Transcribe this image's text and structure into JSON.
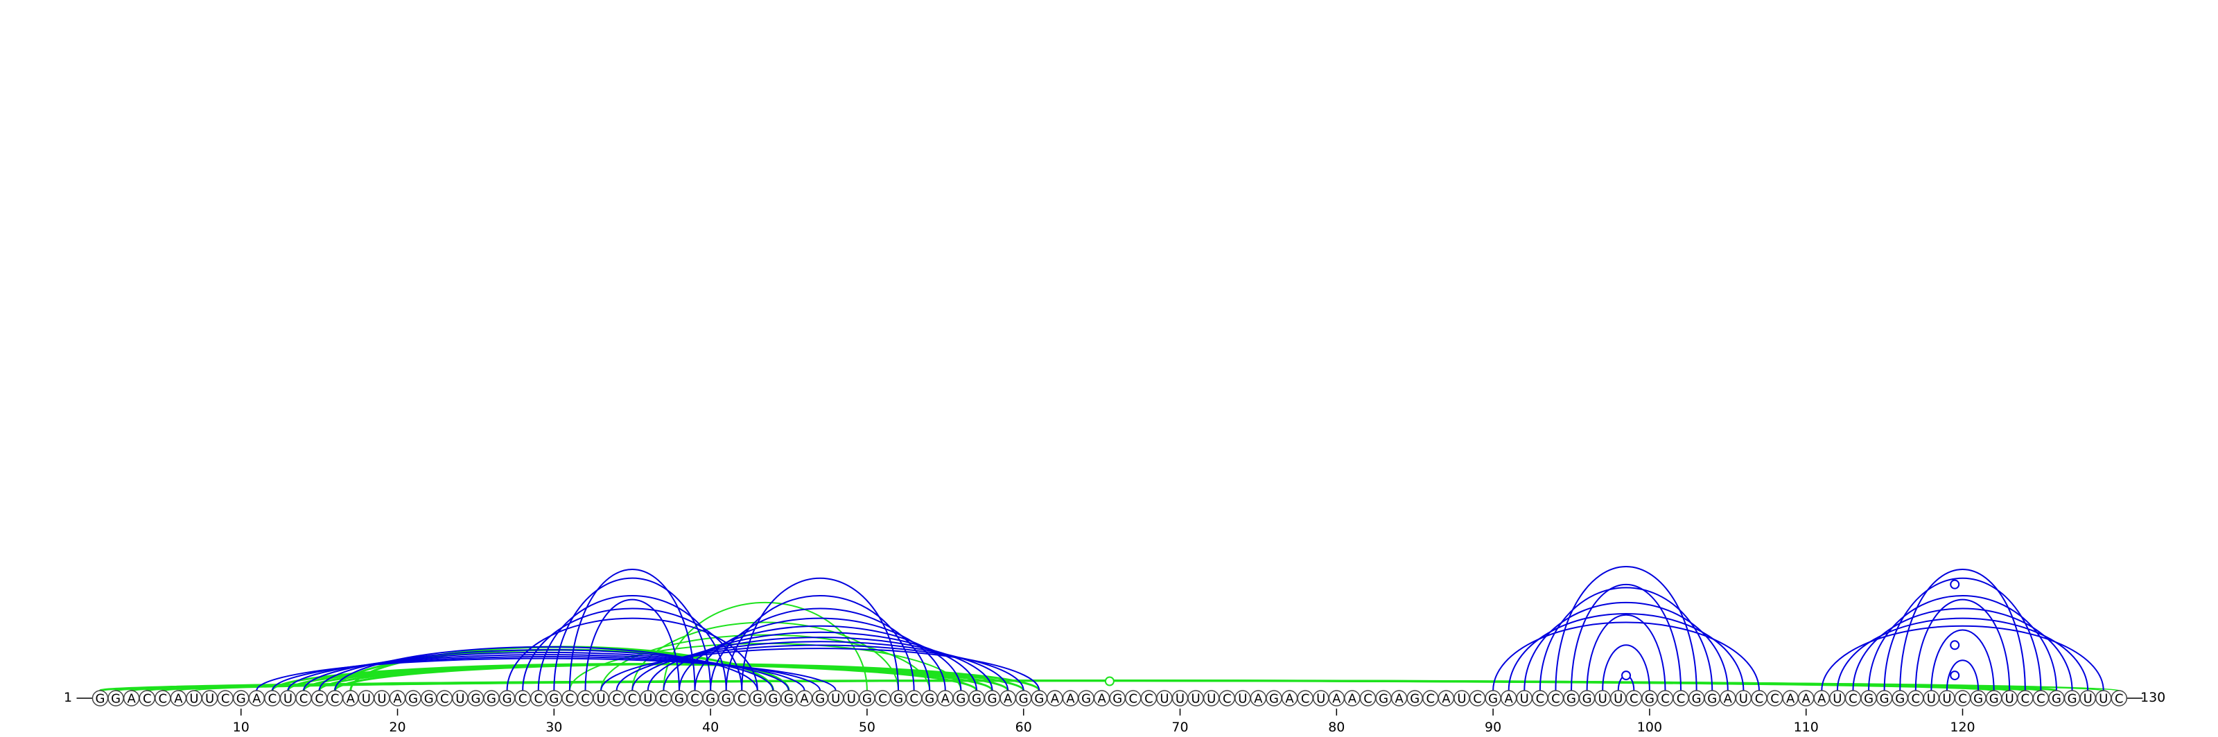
{
  "sequence": "GGACCAUUCGACUCCCAUUAGGCUGGGCCGCCUCCUCGCGGCGGGAGUUGCGCGAGGGAGGAAGAGCCUUUUCUAGACUAACGAGCAUCGAUCCGGUUCGCCGGAUCCAAAUCGGGCUUCGGUCCGGUUC",
  "start_label": "1",
  "end_label": "130",
  "axis_ticks": [
    10,
    20,
    30,
    40,
    50,
    60,
    70,
    80,
    90,
    100,
    110,
    120
  ],
  "colors": {
    "blue": "#0000dd",
    "green": "#1de21d"
  },
  "arc_groups": [
    {
      "color": "green",
      "stroke": 3,
      "pairs": [
        [
          1,
          122
        ],
        [
          2,
          123
        ],
        [
          3,
          124
        ],
        [
          4,
          125
        ],
        [
          5,
          126
        ]
      ]
    },
    {
      "color": "green",
      "stroke": 2,
      "pairs": [
        [
          6,
          129
        ],
        [
          7,
          130
        ]
      ]
    },
    {
      "color": "green",
      "stroke": 3,
      "pairs": [
        [
          12,
          57
        ],
        [
          13,
          58
        ],
        [
          14,
          59
        ],
        [
          15,
          60
        ],
        [
          16,
          61
        ]
      ]
    },
    {
      "color": "green",
      "stroke": 3,
      "pairs": [
        [
          16,
          45
        ],
        [
          17,
          44
        ]
      ]
    },
    {
      "color": "green",
      "stroke": 2,
      "pairs": [
        [
          31,
          56
        ],
        [
          33,
          54
        ],
        [
          35,
          52
        ],
        [
          37,
          50
        ]
      ]
    },
    {
      "color": "blue",
      "stroke": 2,
      "pairs": [
        [
          11,
          48
        ],
        [
          12,
          47
        ],
        [
          13,
          46
        ],
        [
          14,
          45
        ],
        [
          15,
          44
        ],
        [
          16,
          43
        ]
      ]
    },
    {
      "color": "blue",
      "stroke": 2,
      "pairs": [
        [
          27,
          43
        ],
        [
          28,
          42
        ],
        [
          29,
          41
        ],
        [
          30,
          40
        ],
        [
          31,
          39
        ],
        [
          32,
          38
        ]
      ]
    },
    {
      "color": "blue",
      "stroke": 2,
      "pairs": [
        [
          33,
          61
        ],
        [
          34,
          60
        ],
        [
          35,
          59
        ],
        [
          36,
          58
        ],
        [
          37,
          57
        ],
        [
          38,
          56
        ],
        [
          39,
          55
        ],
        [
          40,
          54
        ],
        [
          41,
          53
        ],
        [
          42,
          52
        ]
      ]
    },
    {
      "color": "blue",
      "stroke": 2,
      "pairs": [
        [
          90,
          107
        ],
        [
          91,
          106
        ],
        [
          92,
          105
        ],
        [
          93,
          104
        ],
        [
          94,
          103
        ],
        [
          95,
          102
        ],
        [
          96,
          101
        ],
        [
          97,
          100
        ],
        [
          98,
          99
        ]
      ]
    },
    {
      "color": "blue",
      "stroke": 2,
      "pairs": [
        [
          111,
          129
        ],
        [
          112,
          128
        ],
        [
          113,
          127
        ],
        [
          114,
          126
        ],
        [
          115,
          125
        ],
        [
          116,
          124
        ],
        [
          117,
          123
        ],
        [
          118,
          122
        ],
        [
          119,
          121
        ]
      ]
    }
  ],
  "markers": [
    {
      "color": "green",
      "i": 1,
      "j": 130
    },
    {
      "color": "blue",
      "i": 98,
      "j": 99
    },
    {
      "color": "blue",
      "i": 119,
      "j": 120
    },
    {
      "color": "blue",
      "i": 118,
      "j": 121
    },
    {
      "color": "blue",
      "i": 116,
      "j": 123
    }
  ]
}
